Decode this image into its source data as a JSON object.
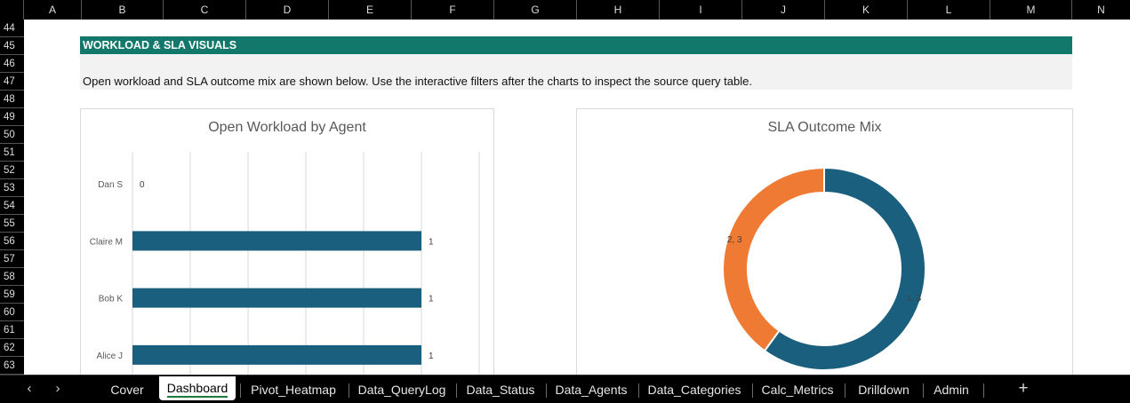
{
  "columns": [
    "A",
    "B",
    "C",
    "D",
    "E",
    "F",
    "G",
    "H",
    "I",
    "J",
    "K",
    "L",
    "M",
    "N"
  ],
  "rows": [
    "44",
    "45",
    "46",
    "47",
    "48",
    "49",
    "50",
    "51",
    "52",
    "53",
    "54",
    "55",
    "56",
    "57",
    "58",
    "59",
    "60",
    "61",
    "62",
    "63"
  ],
  "section": {
    "banner": "WORKLOAD & SLA VISUALS",
    "note": "Open workload and SLA outcome mix are shown below. Use the interactive filters after the charts to inspect the source query table."
  },
  "chart_data": [
    {
      "type": "bar",
      "orientation": "horizontal",
      "title": "Open Workload by Agent",
      "categories": [
        "Dan S",
        "Claire M",
        "Bob K",
        "Alice J"
      ],
      "values": [
        0,
        1,
        1,
        1
      ],
      "data_labels": [
        "0",
        "1",
        "1",
        "1"
      ],
      "xlim": [
        0,
        1.2
      ],
      "grid": true,
      "color": "#1b5f7f"
    },
    {
      "type": "pie",
      "donut": true,
      "title": "SLA Outcome Mix",
      "slices": [
        {
          "label": "1, 3",
          "value": 3,
          "color": "#1b5f7f"
        },
        {
          "label": "2, 3",
          "value": 2,
          "color": "#ee7a33"
        }
      ]
    }
  ],
  "tabs": {
    "prev_icon": "chevron-left-icon",
    "next_icon": "chevron-right-icon",
    "prev_symbol": "‹",
    "next_symbol": "›",
    "items": [
      "Cover",
      "Dashboard",
      "Pivot_Heatmap",
      "Data_QueryLog",
      "Data_Status",
      "Data_Agents",
      "Data_Categories",
      "Calc_Metrics",
      "Drilldown",
      "Admin"
    ],
    "active": "Dashboard",
    "add_symbol": "+"
  }
}
